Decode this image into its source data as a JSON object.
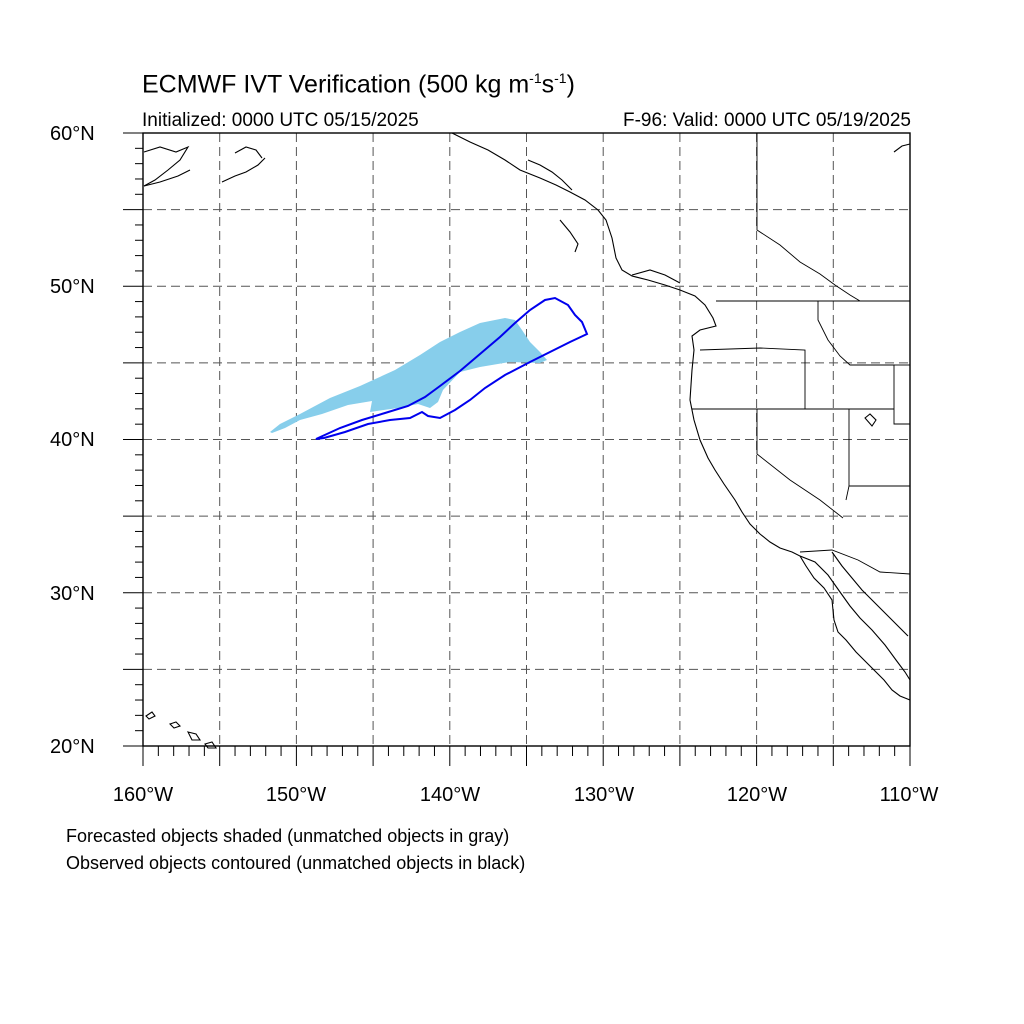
{
  "title": {
    "main": "ECMWF IVT Verification (500 kg m",
    "exp1": "-1",
    "mid": "s",
    "exp2": "-1",
    "end": ")"
  },
  "subtitle": {
    "initialized": "Initialized: 0000 UTC 05/15/2025",
    "valid": "F-96: Valid: 0000 UTC 05/19/2025"
  },
  "axes": {
    "lat_labels": [
      "60°N",
      "50°N",
      "40°N",
      "30°N",
      "20°N"
    ],
    "lon_labels": [
      "160°W",
      "150°W",
      "140°W",
      "130°W",
      "120°W",
      "110°W"
    ],
    "lat_range": [
      20,
      60
    ],
    "lon_range": [
      -160,
      -110
    ],
    "grid_spacing_deg": 5,
    "grid": true
  },
  "legend": {
    "line1": "Forecasted objects shaded (unmatched objects in gray)",
    "line2": "Observed objects contoured (unmatched objects in black)"
  },
  "colors": {
    "forecast_fill": "#87ceeb",
    "observed_contour": "#0000ee",
    "coastline": "#000000",
    "grid": "#555555"
  }
}
